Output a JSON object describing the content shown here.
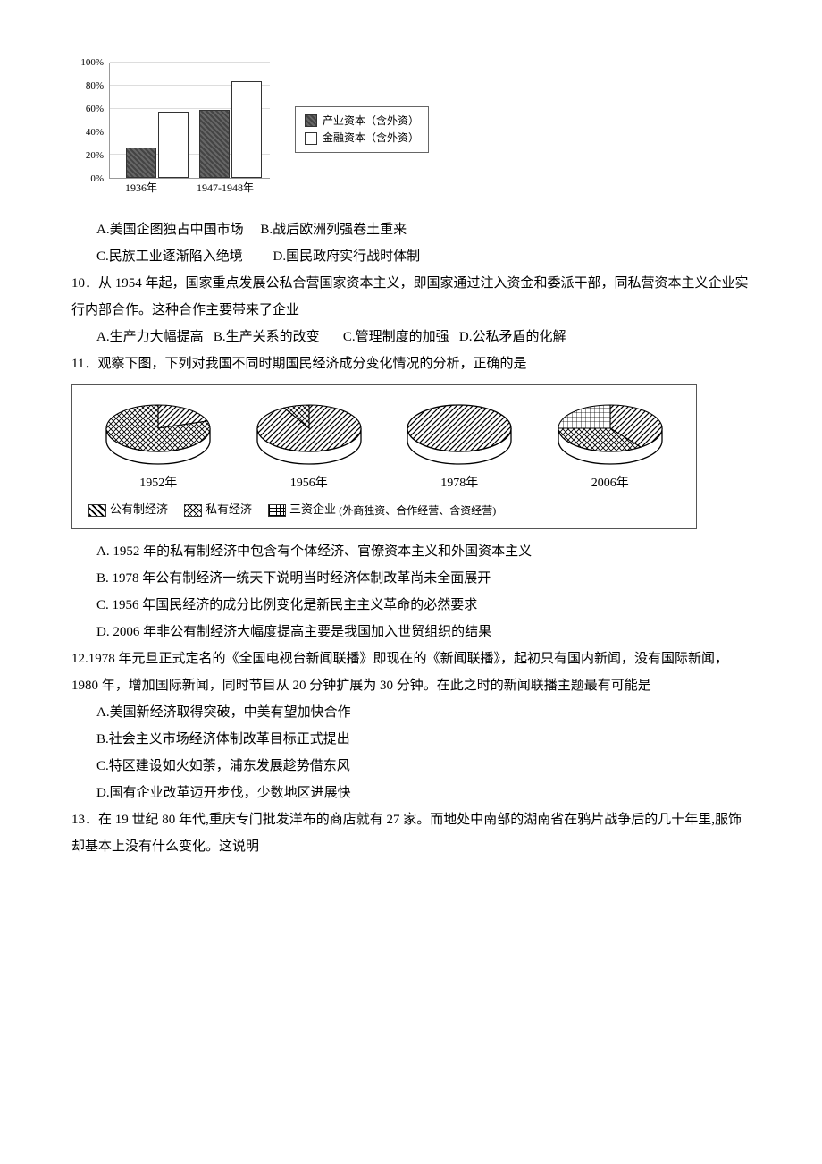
{
  "bar_chart": {
    "type": "bar",
    "ylim": [
      0,
      100
    ],
    "ytick_step": 20,
    "ytick_suffix": "%",
    "categories": [
      "1936年",
      "1947-1948年"
    ],
    "series": [
      {
        "name": "产业资本（含外资）",
        "values": [
          25,
          57
        ],
        "pattern": "dark"
      },
      {
        "name": "金融资本（含外资）",
        "values": [
          56,
          82
        ],
        "pattern": "light"
      }
    ],
    "colors": {
      "dark": "#555555",
      "light": "#ffffff",
      "grid": "#dddddd",
      "axis": "#999999"
    }
  },
  "q9": {
    "opts": {
      "a": "A.美国企图独占中国市场",
      "b": "B.战后欧洲列强卷土重来",
      "c": "C.民族工业逐渐陷入绝境",
      "d": "D.国民政府实行战时体制"
    }
  },
  "q10": {
    "stem": "10．从 1954 年起，国家重点发展公私合营国家资本主义，即国家通过注入资金和委派干部，同私营资本主义企业实行内部合作。这种合作主要带来了企业",
    "opts": {
      "a": "A.生产力大幅提高",
      "b": "B.生产关系的改变",
      "c": "C.管理制度的加强",
      "d": "D.公私矛盾的化解"
    }
  },
  "q11": {
    "stem": "11．观察下图，下列对我国不同时期国民经济成分变化情况的分析，正确的是",
    "pies": [
      {
        "year": "1952年",
        "slices": [
          {
            "pat": "stripe",
            "pct": 20
          },
          {
            "pat": "cross",
            "pct": 80
          }
        ]
      },
      {
        "year": "1956年",
        "slices": [
          {
            "pat": "stripe",
            "pct": 92
          },
          {
            "pat": "cross",
            "pct": 8
          }
        ]
      },
      {
        "year": "1978年",
        "slices": [
          {
            "pat": "stripe",
            "pct": 100
          }
        ]
      },
      {
        "year": "2006年",
        "slices": [
          {
            "pat": "stripe",
            "pct": 40
          },
          {
            "pat": "cross",
            "pct": 35
          },
          {
            "pat": "grid",
            "pct": 25
          }
        ]
      }
    ],
    "legend": {
      "public": "公有制经济",
      "private": "私有经济",
      "sanzi": "三资企业",
      "sanzi_note": "(外商独资、合作经营、含资经营)"
    },
    "opts": {
      "a": "A. 1952 年的私有制经济中包含有个体经济、官僚资本主义和外国资本主义",
      "b": "B. 1978 年公有制经济一统天下说明当时经济体制改革尚未全面展开",
      "c": "C. 1956 年国民经济的成分比例变化是新民主主义革命的必然要求",
      "d": "D. 2006 年非公有制经济大幅度提高主要是我国加入世贸组织的结果"
    }
  },
  "q12": {
    "stem": "12.1978 年元旦正式定名的《全国电视台新闻联播》即现在的《新闻联播》，起初只有国内新闻，没有国际新闻，1980 年，增加国际新闻，同时节目从 20 分钟扩展为 30 分钟。在此之时的新闻联播主题最有可能是",
    "opts": {
      "a": "A.美国新经济取得突破，中美有望加快合作",
      "b": "B.社会主义市场经济体制改革目标正式提出",
      "c": "C.特区建设如火如荼，浦东发展趁势借东风",
      "d": "D.国有企业改革迈开步伐，少数地区进展快"
    }
  },
  "q13": {
    "stem": "13．在 19 世纪 80 年代,重庆专门批发洋布的商店就有 27 家。而地处中南部的湖南省在鸦片战争后的几十年里,服饰却基本上没有什么变化。这说明"
  }
}
